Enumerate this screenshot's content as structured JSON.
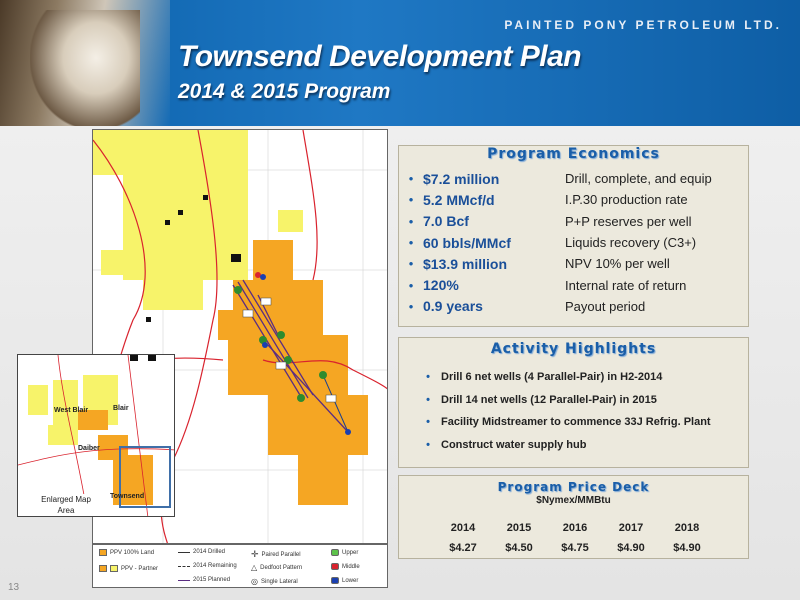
{
  "header": {
    "company": "PAINTED PONY PETROLEUM LTD.",
    "title": "Townsend Development Plan",
    "subtitle": "2014 & 2015 Program"
  },
  "economics": {
    "heading": "Program Economics",
    "items": [
      {
        "value": "$7.2 million",
        "desc": "Drill, complete, and equip"
      },
      {
        "value": "5.2 MMcf/d",
        "desc": "I.P.30 production rate"
      },
      {
        "value": "7.0 Bcf",
        "desc": "P+P reserves per well"
      },
      {
        "value": "60 bbls/MMcf",
        "desc": "Liquids recovery (C3+)"
      },
      {
        "value": "$13.9 million",
        "desc": "NPV 10% per well"
      },
      {
        "value": "120%",
        "desc": "Internal rate of return"
      },
      {
        "value": "0.9 years",
        "desc": "Payout period"
      }
    ]
  },
  "activity": {
    "heading": "Activity Highlights",
    "items": [
      "Drill 6 net wells (4 Parallel-Pair) in H2-2014",
      "Drill 14 net wells (12 Parallel-Pair) in 2015",
      "Facility Midstreamer to commence 33J Refrig. Plant",
      "Construct water supply hub"
    ]
  },
  "price_deck": {
    "heading": "Program Price Deck",
    "unit": "$Nymex/MMBtu",
    "years": [
      "2014",
      "2015",
      "2016",
      "2017",
      "2018"
    ],
    "prices": [
      "$4.27",
      "$4.50",
      "$4.75",
      "$4.90",
      "$4.90"
    ]
  },
  "map": {
    "inset_labels": {
      "west_blair": "West Blair",
      "blair": "Blair",
      "daiber": "Daiber",
      "townsend": "Townsend"
    },
    "callout": "Enlarged Map Area",
    "legend": {
      "ppv_land": "PPV 100% Land",
      "ppv_partner": "PPV - Partner",
      "drilled": "2014 Drilled",
      "remaining": "2014 Remaining",
      "planned": "2015 Planned",
      "paired": "Paired Parallel",
      "dedfoot": "Dedfoot Pattern",
      "single": "Single Lateral",
      "upper": "Upper",
      "middle": "Middle",
      "lower": "Lower"
    },
    "colors": {
      "orange": "#f5a623",
      "yellow": "#f7f36a",
      "road": "#d9232e"
    }
  },
  "page_number": "13"
}
